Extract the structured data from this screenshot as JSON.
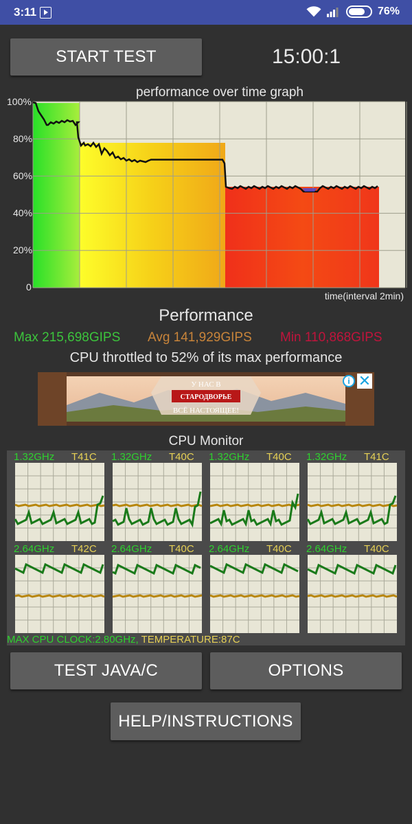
{
  "status_bar": {
    "time": "3:11",
    "battery": "76%",
    "battery_level": 0.76
  },
  "start_button": "START TEST",
  "timer": "15:00:1",
  "graph": {
    "title": "performance over time graph",
    "y_ticks": [
      "100%",
      "80%",
      "60%",
      "40%",
      "20%",
      "0"
    ],
    "x_label": "time(interval 2min)"
  },
  "performance": {
    "title": "Performance",
    "max": "Max 215,698GIPS",
    "avg": "Avg 141,929GIPS",
    "min": "Min 110,868GIPS",
    "throttle": "CPU throttled to 52% of its max performance"
  },
  "ad": {
    "line1": "У НАС В",
    "line2": "СТАРОДВОРЬЕ",
    "line3": "ВСЁ НАСТОЯЩЕЕ!",
    "info": "i",
    "close": "✕"
  },
  "cpu_monitor": {
    "title": "CPU Monitor",
    "cores": [
      {
        "freq": "1.32GHz",
        "temp": "T41C"
      },
      {
        "freq": "1.32GHz",
        "temp": "T40C"
      },
      {
        "freq": "1.32GHz",
        "temp": "T40C"
      },
      {
        "freq": "1.32GHz",
        "temp": "T41C"
      },
      {
        "freq": "2.64GHz",
        "temp": "T42C"
      },
      {
        "freq": "2.64GHz",
        "temp": "T40C"
      },
      {
        "freq": "2.64GHz",
        "temp": "T40C"
      },
      {
        "freq": "2.64GHz",
        "temp": "T40C"
      }
    ],
    "max_clock": "MAX CPU CLOCK:2.80GHz,",
    "temperature": "TEMPERATURE:87C"
  },
  "buttons": {
    "test_java": "TEST JAVA/C",
    "options": "OPTIONS",
    "help": "HELP/INSTRUCTIONS"
  },
  "colors": {
    "green": "#3cc43c",
    "orange": "#c8843a",
    "red": "#c0143c",
    "freq": "#2ed12e",
    "temp": "#e6d055"
  }
}
